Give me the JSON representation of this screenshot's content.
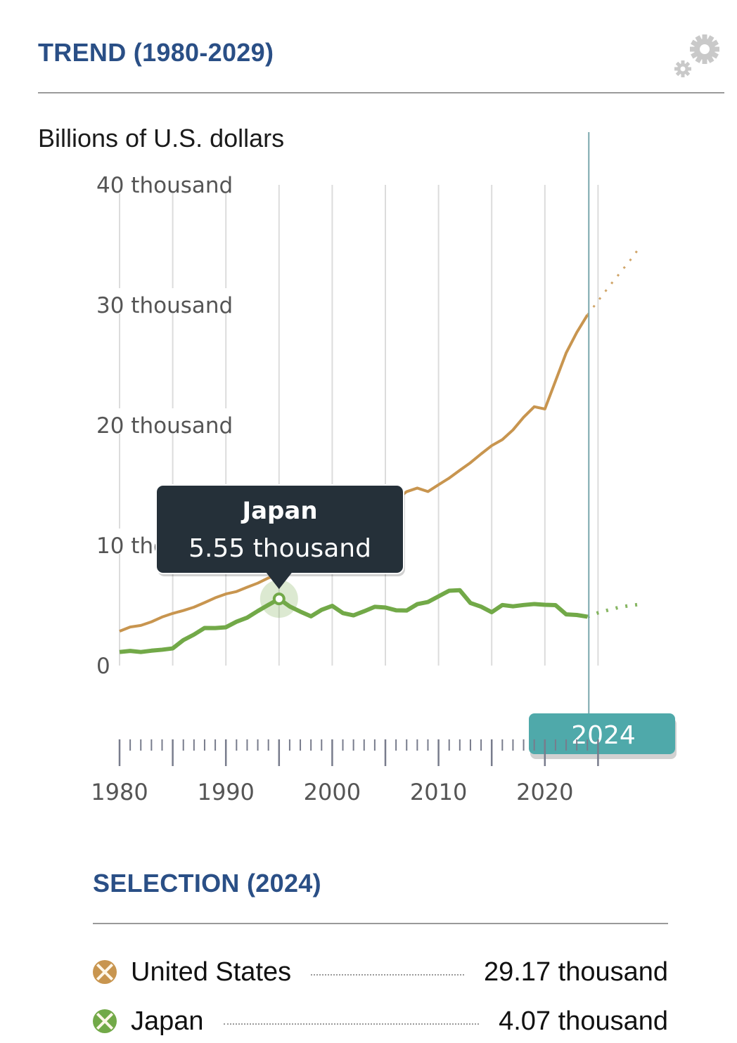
{
  "header": {
    "title": "TREND (1980-2029)",
    "settings_icon": "gears-icon"
  },
  "unit_label": "Billions of U.S. dollars",
  "tooltip": {
    "series": "Japan",
    "value": "5.55 thousand",
    "year": 1995
  },
  "year_cursor": {
    "label": "2024",
    "value": 2024,
    "color": "#4fa9aa"
  },
  "selection": {
    "title": "SELECTION (2024)",
    "items": [
      {
        "name": "United States",
        "value": "29.17 thousand",
        "color": "#c8954f"
      },
      {
        "name": "Japan",
        "value": "4.07 thousand",
        "color": "#72a948"
      }
    ]
  },
  "chart_data": {
    "type": "line",
    "title": "TREND (1980-2029)",
    "ylabel": "Billions of U.S. dollars",
    "xlabel": "",
    "xlim": [
      1980,
      2029
    ],
    "ylim": [
      0,
      40000
    ],
    "y_ticks": [
      {
        "value": 0,
        "label": "0"
      },
      {
        "value": 10000,
        "label": "10 thousand"
      },
      {
        "value": 20000,
        "label": "20 thousand"
      },
      {
        "value": 30000,
        "label": "30 thousand"
      },
      {
        "value": 40000,
        "label": "40 thousand"
      }
    ],
    "x_ticks": [
      {
        "value": 1980,
        "label": "1980"
      },
      {
        "value": 1990,
        "label": "1990"
      },
      {
        "value": 2000,
        "label": "2000"
      },
      {
        "value": 2010,
        "label": "2010"
      },
      {
        "value": 2020,
        "label": "2020"
      }
    ],
    "grid": "vertical every 5 years",
    "projection_start": 2024,
    "series": [
      {
        "name": "United States",
        "color": "#c8954f",
        "x": [
          1980,
          1981,
          1982,
          1983,
          1984,
          1985,
          1986,
          1987,
          1988,
          1989,
          1990,
          1991,
          1992,
          1993,
          1994,
          1995,
          1996,
          1997,
          1998,
          1999,
          2000,
          2001,
          2002,
          2003,
          2004,
          2005,
          2006,
          2007,
          2008,
          2009,
          2010,
          2011,
          2012,
          2013,
          2014,
          2015,
          2016,
          2017,
          2018,
          2019,
          2020,
          2021,
          2022,
          2023,
          2024,
          2025,
          2026,
          2027,
          2028,
          2029
        ],
        "values": [
          2860,
          3210,
          3340,
          3640,
          4040,
          4340,
          4580,
          4860,
          5240,
          5640,
          5960,
          6160,
          6520,
          6860,
          7290,
          7640,
          8070,
          8580,
          9060,
          9630,
          10250,
          10580,
          10940,
          11460,
          12210,
          13040,
          13810,
          14470,
          14770,
          14480,
          15050,
          15600,
          16250,
          16880,
          17610,
          18300,
          18800,
          19610,
          20660,
          21540,
          21350,
          23680,
          26010,
          27720,
          29170,
          30340,
          31500,
          32600,
          33700,
          34900
        ],
        "line_width": "thin"
      },
      {
        "name": "Japan",
        "color": "#72a948",
        "x": [
          1980,
          1981,
          1982,
          1983,
          1984,
          1985,
          1986,
          1987,
          1988,
          1989,
          1990,
          1991,
          1992,
          1993,
          1994,
          1995,
          1996,
          1997,
          1998,
          1999,
          2000,
          2001,
          2002,
          2003,
          2004,
          2005,
          2006,
          2007,
          2008,
          2009,
          2010,
          2011,
          2012,
          2013,
          2014,
          2015,
          2016,
          2017,
          2018,
          2019,
          2020,
          2021,
          2022,
          2023,
          2024,
          2025,
          2026,
          2027,
          2028,
          2029
        ],
        "values": [
          1130,
          1220,
          1130,
          1240,
          1320,
          1430,
          2120,
          2580,
          3130,
          3120,
          3190,
          3650,
          3990,
          4540,
          5050,
          5550,
          4920,
          4490,
          4100,
          4640,
          4970,
          4370,
          4180,
          4520,
          4890,
          4830,
          4600,
          4580,
          5110,
          5290,
          5760,
          6230,
          6270,
          5210,
          4900,
          4440,
          5040,
          4930,
          5040,
          5120,
          5060,
          5030,
          4260,
          4210,
          4070,
          4390,
          4630,
          4850,
          5000,
          5100
        ],
        "line_width": "thick"
      }
    ]
  }
}
